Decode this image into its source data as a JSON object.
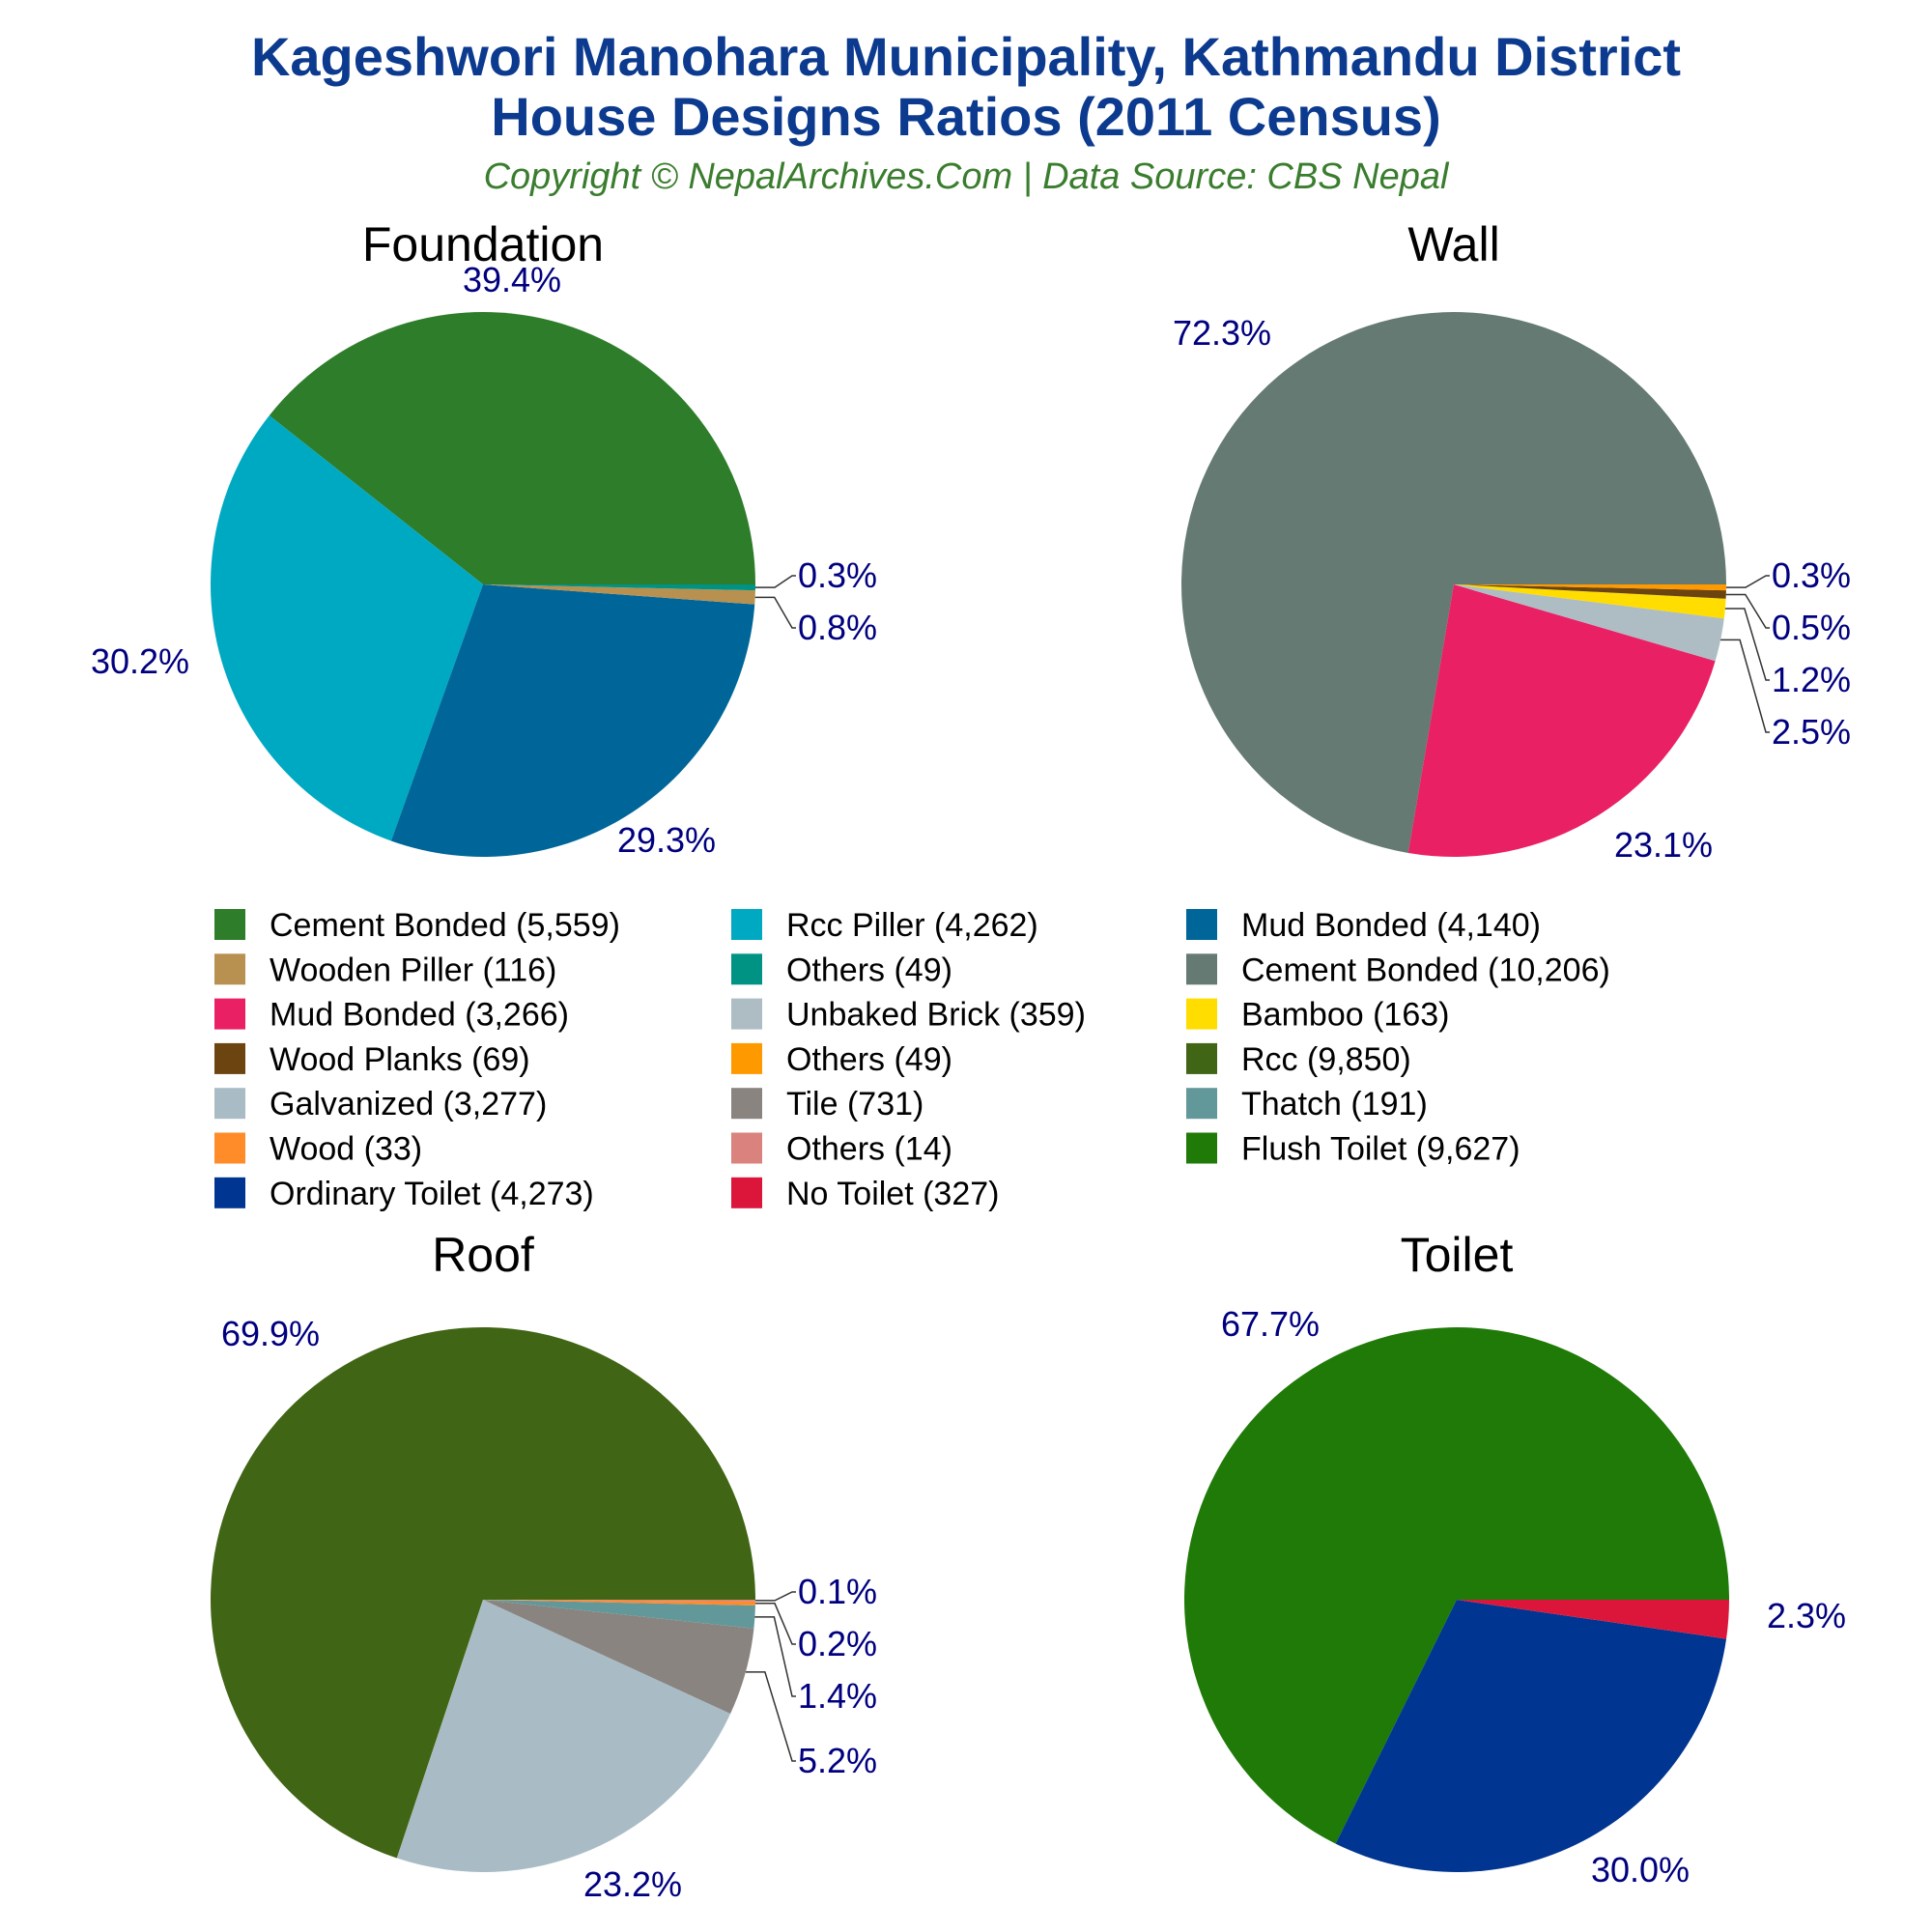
{
  "header": {
    "title_line1": "Kageshwori Manohara Municipality, Kathmandu District",
    "title_line2": "House Designs Ratios (2011 Census)",
    "subtitle": "Copyright © NepalArchives.Com | Data Source: CBS Nepal"
  },
  "chart_data": [
    {
      "type": "pie",
      "title": "Foundation",
      "slices": [
        {
          "label": "Cement Bonded",
          "value": 5559,
          "percent_label": "39.4%",
          "color": "#2e7d2a"
        },
        {
          "label": "Rcc Piller",
          "value": 4262,
          "percent_label": "30.2%",
          "color": "#00a9c2"
        },
        {
          "label": "Mud Bonded",
          "value": 4140,
          "percent_label": "29.3%",
          "color": "#006699"
        },
        {
          "label": "Wooden Piller",
          "value": 116,
          "percent_label": "0.8%",
          "color": "#b8904f"
        },
        {
          "label": "Others",
          "value": 49,
          "percent_label": "0.3%",
          "color": "#009384"
        }
      ]
    },
    {
      "type": "pie",
      "title": "Wall",
      "slices": [
        {
          "label": "Cement Bonded",
          "value": 10206,
          "percent_label": "72.3%",
          "color": "#647a72"
        },
        {
          "label": "Mud Bonded",
          "value": 3266,
          "percent_label": "23.1%",
          "color": "#ea2064"
        },
        {
          "label": "Unbaked Brick",
          "value": 359,
          "percent_label": "2.5%",
          "color": "#aebdc4"
        },
        {
          "label": "Bamboo",
          "value": 163,
          "percent_label": "1.2%",
          "color": "#ffdd00"
        },
        {
          "label": "Wood Planks",
          "value": 69,
          "percent_label": "0.5%",
          "color": "#6b4410"
        },
        {
          "label": "Others",
          "value": 49,
          "percent_label": "0.3%",
          "color": "#ff9900"
        }
      ]
    },
    {
      "type": "pie",
      "title": "Roof",
      "slices": [
        {
          "label": "Rcc",
          "value": 9850,
          "percent_label": "69.9%",
          "color": "#406514"
        },
        {
          "label": "Galvanized",
          "value": 3277,
          "percent_label": "23.2%",
          "color": "#a9bcc5"
        },
        {
          "label": "Tile",
          "value": 731,
          "percent_label": "5.2%",
          "color": "#8a8480"
        },
        {
          "label": "Thatch",
          "value": 191,
          "percent_label": "1.4%",
          "color": "#63989a"
        },
        {
          "label": "Wood",
          "value": 33,
          "percent_label": "0.2%",
          "color": "#ff8c28"
        },
        {
          "label": "Others",
          "value": 14,
          "percent_label": "0.1%",
          "color": "#d9827e"
        }
      ]
    },
    {
      "type": "pie",
      "title": "Toilet",
      "slices": [
        {
          "label": "Flush Toilet",
          "value": 9627,
          "percent_label": "67.7%",
          "color": "#1f7a08"
        },
        {
          "label": "Ordinary Toilet",
          "value": 4273,
          "percent_label": "30.0%",
          "color": "#003591"
        },
        {
          "label": "No Toilet",
          "value": 327,
          "percent_label": "2.3%",
          "color": "#dc163b"
        }
      ]
    }
  ],
  "legend": [
    {
      "text": "Cement Bonded (5,559)",
      "color": "#2e7d2a"
    },
    {
      "text": "Rcc Piller (4,262)",
      "color": "#00a9c2"
    },
    {
      "text": "Mud Bonded (4,140)",
      "color": "#006699"
    },
    {
      "text": "Wooden Piller (116)",
      "color": "#b8904f"
    },
    {
      "text": "Others (49)",
      "color": "#009384"
    },
    {
      "text": "Cement Bonded (10,206)",
      "color": "#647a72"
    },
    {
      "text": "Mud Bonded (3,266)",
      "color": "#ea2064"
    },
    {
      "text": "Unbaked Brick (359)",
      "color": "#aebdc4"
    },
    {
      "text": "Bamboo (163)",
      "color": "#ffdd00"
    },
    {
      "text": "Wood Planks (69)",
      "color": "#6b4410"
    },
    {
      "text": "Others (49)",
      "color": "#ff9900"
    },
    {
      "text": "Rcc (9,850)",
      "color": "#406514"
    },
    {
      "text": "Galvanized (3,277)",
      "color": "#a9bcc5"
    },
    {
      "text": "Tile (731)",
      "color": "#8a8480"
    },
    {
      "text": "Thatch (191)",
      "color": "#63989a"
    },
    {
      "text": "Wood (33)",
      "color": "#ff8c28"
    },
    {
      "text": "Others (14)",
      "color": "#d9827e"
    },
    {
      "text": "Flush Toilet (9,627)",
      "color": "#1f7a08"
    },
    {
      "text": "Ordinary Toilet (4,273)",
      "color": "#003591"
    },
    {
      "text": "No Toilet (327)",
      "color": "#dc163b"
    }
  ]
}
